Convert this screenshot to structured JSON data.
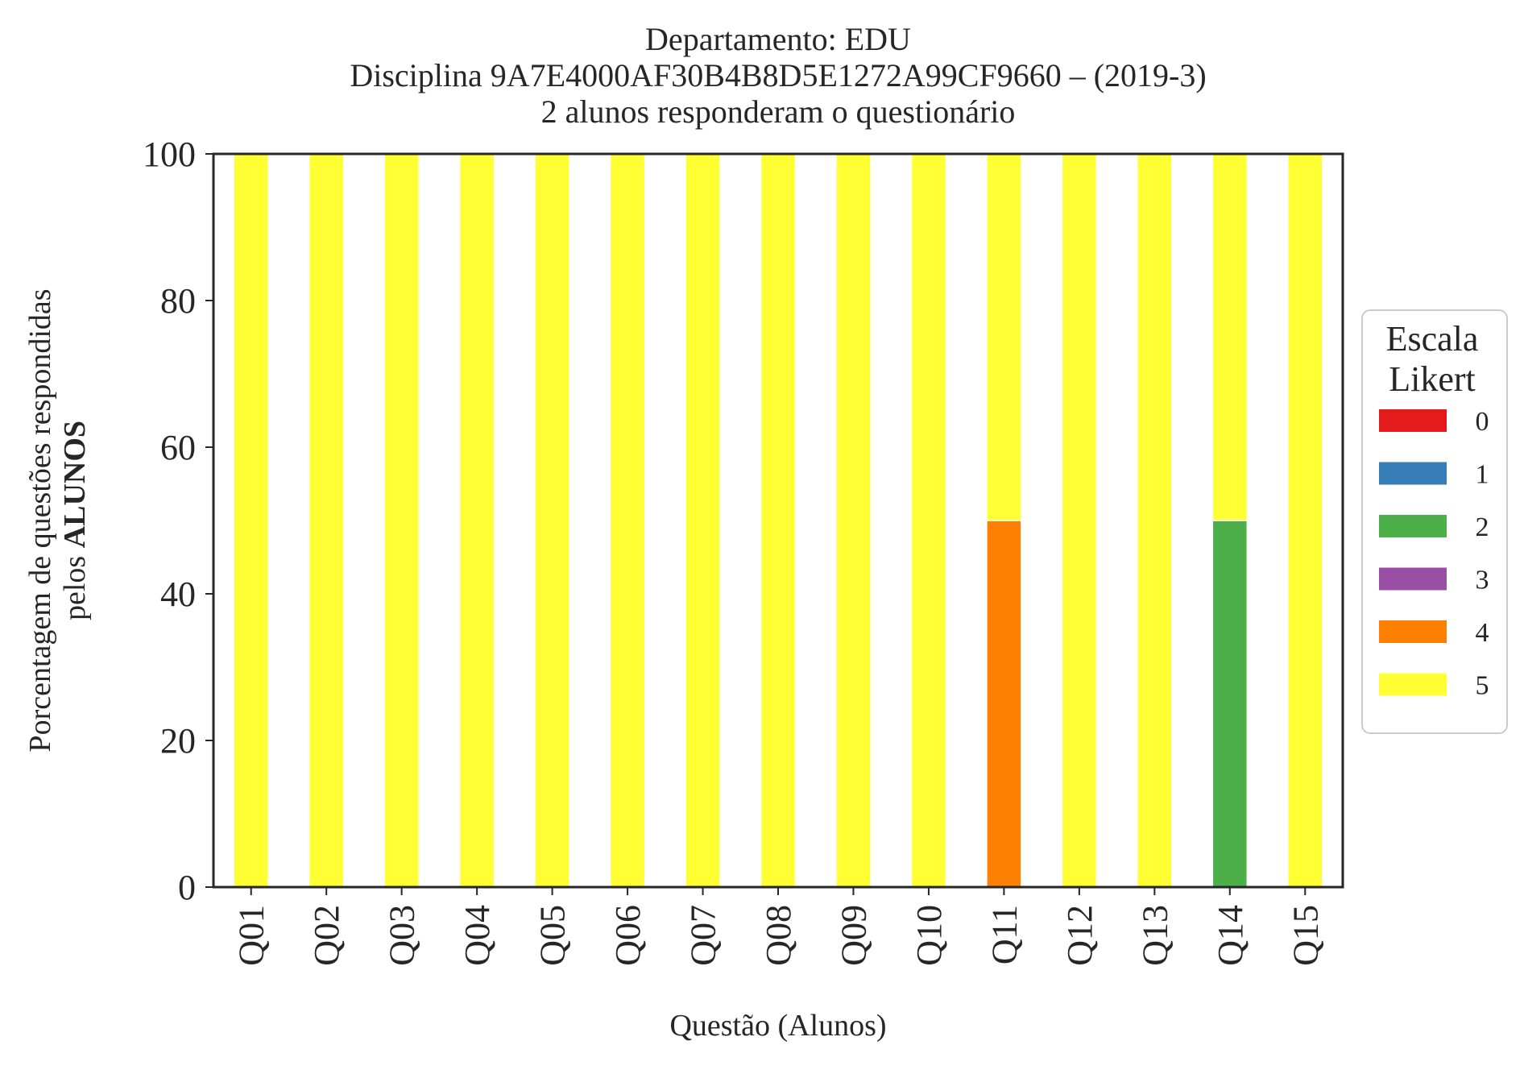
{
  "chart_data": {
    "type": "bar",
    "stacked": true,
    "title": [
      "Departamento: EDU",
      "Disciplina 9A7E4000AF30B4B8D5E1272A99CF9660 – (2019-3)",
      "2 alunos responderam o questionário"
    ],
    "xlabel": "Questão (Alunos)",
    "ylabel_line1": "Porcentagem de questões respondidas",
    "ylabel_line2_prefix": "pelos ",
    "ylabel_line2_bold": "ALUNOS",
    "ylim": [
      0,
      100
    ],
    "yticks": [
      0,
      20,
      40,
      60,
      80,
      100
    ],
    "categories": [
      "Q01",
      "Q02",
      "Q03",
      "Q04",
      "Q05",
      "Q06",
      "Q07",
      "Q08",
      "Q09",
      "Q10",
      "Q11",
      "Q12",
      "Q13",
      "Q14",
      "Q15"
    ],
    "series": [
      {
        "name": "0",
        "color": "#e41a1c",
        "values": [
          0,
          0,
          0,
          0,
          0,
          0,
          0,
          0,
          0,
          0,
          0,
          0,
          0,
          0,
          0
        ]
      },
      {
        "name": "1",
        "color": "#377eb8",
        "values": [
          0,
          0,
          0,
          0,
          0,
          0,
          0,
          0,
          0,
          0,
          0,
          0,
          0,
          0,
          0
        ]
      },
      {
        "name": "2",
        "color": "#4daf4a",
        "values": [
          0,
          0,
          0,
          0,
          0,
          0,
          0,
          0,
          0,
          0,
          0,
          0,
          0,
          50,
          0
        ]
      },
      {
        "name": "3",
        "color": "#984ea3",
        "values": [
          0,
          0,
          0,
          0,
          0,
          0,
          0,
          0,
          0,
          0,
          0,
          0,
          0,
          0,
          0
        ]
      },
      {
        "name": "4",
        "color": "#ff7f00",
        "values": [
          0,
          0,
          0,
          0,
          0,
          0,
          0,
          0,
          0,
          0,
          50,
          0,
          0,
          0,
          0
        ]
      },
      {
        "name": "5",
        "color": "#ffff33",
        "values": [
          100,
          100,
          100,
          100,
          100,
          100,
          100,
          100,
          100,
          100,
          50,
          100,
          100,
          50,
          100
        ]
      }
    ],
    "legend": {
      "title_line1": "Escala",
      "title_line2": "Likert",
      "placement": "right"
    },
    "grid": false
  }
}
